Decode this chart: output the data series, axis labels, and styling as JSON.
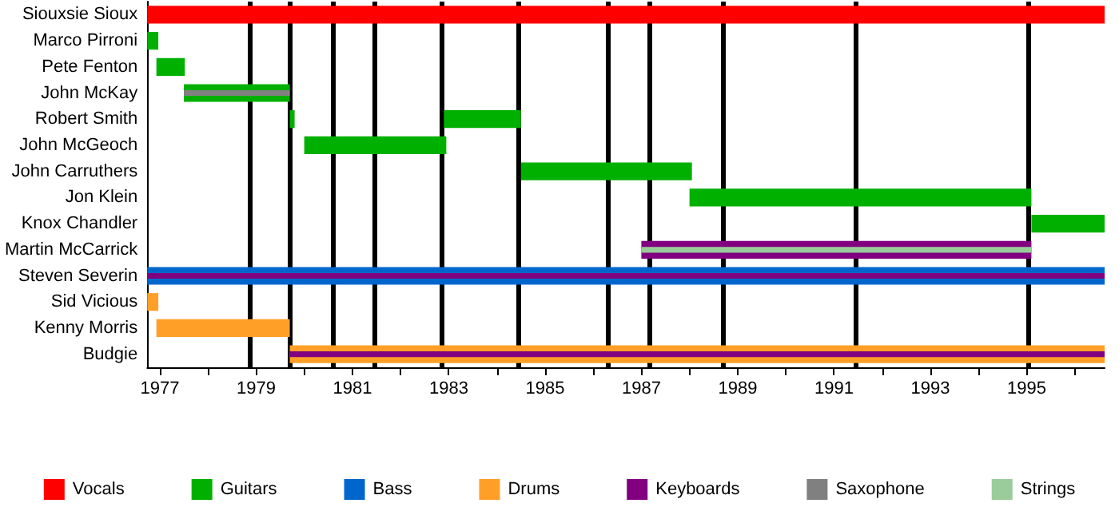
{
  "chart_data": {
    "type": "bar",
    "orientation": "horizontal",
    "categories": [
      "Siouxsie Sioux",
      "Marco Pirroni",
      "Pete Fenton",
      "John McKay",
      "Robert Smith",
      "John McGeoch",
      "John Carruthers",
      "Jon Klein",
      "Knox Chandler",
      "Martin McCarrick",
      "Steven Severin",
      "Sid Vicious",
      "Kenny Morris",
      "Budgie"
    ],
    "series": [
      {
        "name": "Vocals",
        "color": "#ff0000",
        "base": [
          1976.74,
          null,
          null,
          null,
          null,
          null,
          null,
          null,
          null,
          null,
          null,
          null,
          null,
          null
        ],
        "values": [
          19.88,
          null,
          null,
          null,
          null,
          null,
          null,
          null,
          null,
          null,
          null,
          null,
          null,
          null
        ]
      },
      {
        "name": "Guitars",
        "color": "#00b000",
        "base": [
          null,
          1976.74,
          1976.93,
          1977.5,
          1979.7,
          1980.0,
          1984.5,
          1988.0,
          1995.1,
          null,
          null,
          null,
          null,
          null
        ],
        "values": [
          null,
          0.23,
          0.59,
          2.2,
          0.1,
          2.95,
          3.55,
          7.1,
          1.52,
          null,
          null,
          null,
          null,
          null
        ]
      },
      {
        "color": "#00b000",
        "base": [
          null,
          null,
          null,
          null,
          1982.9,
          null,
          null,
          null,
          null,
          null,
          null,
          null,
          null,
          null
        ],
        "values": [
          null,
          null,
          null,
          null,
          1.6,
          null,
          null,
          null,
          null,
          null,
          null,
          null,
          null,
          null
        ]
      },
      {
        "name": "Bass",
        "color": "#0066cc",
        "base": [
          null,
          null,
          null,
          null,
          null,
          null,
          null,
          null,
          null,
          null,
          1976.74,
          null,
          null,
          null
        ],
        "values": [
          null,
          null,
          null,
          null,
          null,
          null,
          null,
          null,
          null,
          null,
          19.88,
          null,
          null,
          null
        ]
      },
      {
        "name": "Drums",
        "color": "#ff9f28",
        "base": [
          null,
          null,
          null,
          null,
          null,
          null,
          null,
          null,
          null,
          null,
          null,
          1976.74,
          1976.93,
          1979.7
        ],
        "values": [
          null,
          null,
          null,
          null,
          null,
          null,
          null,
          null,
          null,
          null,
          null,
          0.23,
          2.77,
          16.92
        ]
      },
      {
        "name": "Keyboards",
        "color": "#800080",
        "base": [
          null,
          null,
          null,
          null,
          null,
          null,
          null,
          null,
          null,
          1987.0,
          1976.74,
          null,
          null,
          1979.7
        ],
        "values": [
          null,
          null,
          null,
          null,
          null,
          null,
          null,
          null,
          null,
          8.1,
          19.88,
          null,
          null,
          16.92
        ]
      },
      {
        "name": "Saxophone",
        "color": "#808080",
        "base": [
          null,
          null,
          null,
          1977.5,
          null,
          null,
          null,
          null,
          null,
          null,
          null,
          null,
          null,
          null
        ],
        "values": [
          null,
          null,
          null,
          2.2,
          null,
          null,
          null,
          null,
          null,
          null,
          null,
          null,
          null,
          null
        ]
      },
      {
        "name": "Strings",
        "color": "#99cc99",
        "base": [
          null,
          null,
          null,
          null,
          null,
          null,
          null,
          null,
          null,
          1987.0,
          null,
          null,
          null,
          null
        ],
        "values": [
          null,
          null,
          null,
          null,
          null,
          null,
          null,
          null,
          null,
          8.1,
          null,
          null,
          null,
          null
        ]
      }
    ],
    "xlim": [
      1976.74,
      1996.62
    ],
    "xticks": [
      1977,
      {
        "value": 1978,
        "label": null
      },
      1979,
      {
        "value": 1980,
        "label": null
      },
      1981,
      {
        "value": 1982,
        "label": null
      },
      1983,
      {
        "value": 1984,
        "label": null
      },
      1985,
      {
        "value": 1986,
        "label": null
      },
      1987,
      {
        "value": 1988,
        "label": null
      },
      1989,
      {
        "value": 1990,
        "label": null
      },
      1991,
      {
        "value": 1992,
        "label": null
      },
      1993,
      {
        "value": 1994,
        "label": null
      },
      1995,
      {
        "value": 1996,
        "label": null
      }
    ],
    "ref_lines": [
      {
        "axis": "x",
        "value": 1978.87,
        "color": "#000000"
      },
      {
        "axis": "x",
        "value": 1979.69,
        "color": "#000000"
      },
      {
        "axis": "x",
        "value": 1980.6,
        "color": "#000000"
      },
      {
        "axis": "x",
        "value": 1981.45,
        "color": "#000000"
      },
      {
        "axis": "x",
        "value": 1982.86,
        "color": "#000000"
      },
      {
        "axis": "x",
        "value": 1984.45,
        "color": "#000000"
      },
      {
        "axis": "x",
        "value": 1986.32,
        "color": "#000000"
      },
      {
        "axis": "x",
        "value": 1987.17,
        "color": "#000000"
      },
      {
        "axis": "x",
        "value": 1988.68,
        "color": "#000000"
      },
      {
        "axis": "x",
        "value": 1991.45,
        "color": "#000000"
      },
      {
        "axis": "x",
        "value": 1995.05,
        "color": "#000000"
      }
    ],
    "grid": false,
    "legend": "bottom"
  }
}
